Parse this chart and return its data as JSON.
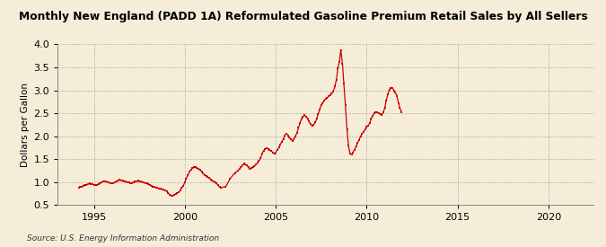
{
  "title": "Monthly New England (PADD 1A) Reformulated Gasoline Premium Retail Sales by All Sellers",
  "ylabel": "Dollars per Gallon",
  "source": "Source: U.S. Energy Information Administration",
  "background_color": "#f5edd8",
  "plot_bg_color": "#f5edd8",
  "dot_color": "#cc0000",
  "line_color": "#cc0000",
  "ylim": [
    0.5,
    4.0
  ],
  "yticks": [
    0.5,
    1.0,
    1.5,
    2.0,
    2.5,
    3.0,
    3.5,
    4.0
  ],
  "xlim_start": 1993.0,
  "xlim_end": 2022.5,
  "xticks": [
    1995,
    2000,
    2005,
    2010,
    2015,
    2020
  ],
  "data": [
    [
      1994.17,
      0.87
    ],
    [
      1994.25,
      0.89
    ],
    [
      1994.33,
      0.9
    ],
    [
      1994.42,
      0.92
    ],
    [
      1994.5,
      0.93
    ],
    [
      1994.58,
      0.94
    ],
    [
      1994.67,
      0.95
    ],
    [
      1994.75,
      0.97
    ],
    [
      1994.83,
      0.96
    ],
    [
      1994.92,
      0.95
    ],
    [
      1995.0,
      0.94
    ],
    [
      1995.08,
      0.93
    ],
    [
      1995.17,
      0.93
    ],
    [
      1995.25,
      0.95
    ],
    [
      1995.33,
      0.97
    ],
    [
      1995.42,
      0.99
    ],
    [
      1995.5,
      1.01
    ],
    [
      1995.58,
      1.02
    ],
    [
      1995.67,
      1.01
    ],
    [
      1995.75,
      1.0
    ],
    [
      1995.83,
      0.99
    ],
    [
      1995.92,
      0.98
    ],
    [
      1996.0,
      0.97
    ],
    [
      1996.08,
      0.98
    ],
    [
      1996.17,
      1.0
    ],
    [
      1996.25,
      1.02
    ],
    [
      1996.33,
      1.04
    ],
    [
      1996.42,
      1.05
    ],
    [
      1996.5,
      1.04
    ],
    [
      1996.58,
      1.03
    ],
    [
      1996.67,
      1.02
    ],
    [
      1996.75,
      1.01
    ],
    [
      1996.83,
      1.0
    ],
    [
      1996.92,
      0.99
    ],
    [
      1997.0,
      0.98
    ],
    [
      1997.08,
      0.98
    ],
    [
      1997.17,
      1.0
    ],
    [
      1997.25,
      1.01
    ],
    [
      1997.33,
      1.02
    ],
    [
      1997.42,
      1.03
    ],
    [
      1997.5,
      1.02
    ],
    [
      1997.58,
      1.01
    ],
    [
      1997.67,
      1.0
    ],
    [
      1997.75,
      0.99
    ],
    [
      1997.83,
      0.98
    ],
    [
      1997.92,
      0.97
    ],
    [
      1998.0,
      0.96
    ],
    [
      1998.08,
      0.94
    ],
    [
      1998.17,
      0.92
    ],
    [
      1998.25,
      0.9
    ],
    [
      1998.33,
      0.89
    ],
    [
      1998.42,
      0.88
    ],
    [
      1998.5,
      0.87
    ],
    [
      1998.58,
      0.86
    ],
    [
      1998.67,
      0.85
    ],
    [
      1998.75,
      0.84
    ],
    [
      1998.83,
      0.83
    ],
    [
      1998.92,
      0.82
    ],
    [
      1999.0,
      0.8
    ],
    [
      1999.08,
      0.76
    ],
    [
      1999.17,
      0.73
    ],
    [
      1999.25,
      0.71
    ],
    [
      1999.33,
      0.7
    ],
    [
      1999.42,
      0.72
    ],
    [
      1999.5,
      0.74
    ],
    [
      1999.58,
      0.76
    ],
    [
      1999.67,
      0.78
    ],
    [
      1999.75,
      0.82
    ],
    [
      1999.83,
      0.87
    ],
    [
      1999.92,
      0.92
    ],
    [
      2000.0,
      1.0
    ],
    [
      2000.08,
      1.08
    ],
    [
      2000.17,
      1.15
    ],
    [
      2000.25,
      1.22
    ],
    [
      2000.33,
      1.27
    ],
    [
      2000.42,
      1.3
    ],
    [
      2000.5,
      1.32
    ],
    [
      2000.58,
      1.33
    ],
    [
      2000.67,
      1.31
    ],
    [
      2000.75,
      1.29
    ],
    [
      2000.83,
      1.26
    ],
    [
      2000.92,
      1.23
    ],
    [
      2001.0,
      1.19
    ],
    [
      2001.08,
      1.16
    ],
    [
      2001.17,
      1.13
    ],
    [
      2001.25,
      1.11
    ],
    [
      2001.33,
      1.09
    ],
    [
      2001.42,
      1.06
    ],
    [
      2001.5,
      1.03
    ],
    [
      2001.58,
      1.01
    ],
    [
      2001.67,
      0.99
    ],
    [
      2001.75,
      0.97
    ],
    [
      2001.83,
      0.93
    ],
    [
      2001.92,
      0.89
    ],
    [
      2002.0,
      0.88
    ],
    [
      2002.25,
      0.9
    ],
    [
      2002.5,
      1.08
    ],
    [
      2002.75,
      1.2
    ],
    [
      2002.92,
      1.25
    ],
    [
      2003.0,
      1.28
    ],
    [
      2003.08,
      1.32
    ],
    [
      2003.17,
      1.36
    ],
    [
      2003.25,
      1.4
    ],
    [
      2003.33,
      1.38
    ],
    [
      2003.42,
      1.36
    ],
    [
      2003.5,
      1.32
    ],
    [
      2003.58,
      1.28
    ],
    [
      2003.67,
      1.3
    ],
    [
      2003.75,
      1.32
    ],
    [
      2003.83,
      1.35
    ],
    [
      2003.92,
      1.38
    ],
    [
      2004.0,
      1.42
    ],
    [
      2004.08,
      1.46
    ],
    [
      2004.17,
      1.52
    ],
    [
      2004.25,
      1.62
    ],
    [
      2004.33,
      1.68
    ],
    [
      2004.42,
      1.72
    ],
    [
      2004.5,
      1.74
    ],
    [
      2004.58,
      1.72
    ],
    [
      2004.67,
      1.7
    ],
    [
      2004.75,
      1.68
    ],
    [
      2004.83,
      1.65
    ],
    [
      2004.92,
      1.62
    ],
    [
      2005.0,
      1.65
    ],
    [
      2005.08,
      1.7
    ],
    [
      2005.17,
      1.75
    ],
    [
      2005.25,
      1.82
    ],
    [
      2005.33,
      1.88
    ],
    [
      2005.42,
      1.94
    ],
    [
      2005.5,
      2.02
    ],
    [
      2005.58,
      2.06
    ],
    [
      2005.67,
      2.02
    ],
    [
      2005.75,
      1.98
    ],
    [
      2005.83,
      1.93
    ],
    [
      2005.92,
      1.9
    ],
    [
      2006.0,
      1.94
    ],
    [
      2006.08,
      2.0
    ],
    [
      2006.17,
      2.08
    ],
    [
      2006.25,
      2.18
    ],
    [
      2006.33,
      2.28
    ],
    [
      2006.42,
      2.38
    ],
    [
      2006.5,
      2.42
    ],
    [
      2006.58,
      2.46
    ],
    [
      2006.67,
      2.43
    ],
    [
      2006.75,
      2.38
    ],
    [
      2006.83,
      2.32
    ],
    [
      2006.92,
      2.26
    ],
    [
      2007.0,
      2.22
    ],
    [
      2007.08,
      2.24
    ],
    [
      2007.17,
      2.3
    ],
    [
      2007.25,
      2.38
    ],
    [
      2007.33,
      2.48
    ],
    [
      2007.42,
      2.58
    ],
    [
      2007.5,
      2.68
    ],
    [
      2007.58,
      2.72
    ],
    [
      2007.67,
      2.78
    ],
    [
      2007.75,
      2.82
    ],
    [
      2007.83,
      2.84
    ],
    [
      2007.92,
      2.87
    ],
    [
      2008.0,
      2.9
    ],
    [
      2008.08,
      2.93
    ],
    [
      2008.17,
      2.98
    ],
    [
      2008.25,
      3.08
    ],
    [
      2008.33,
      3.22
    ],
    [
      2008.42,
      3.48
    ],
    [
      2008.5,
      3.62
    ],
    [
      2008.58,
      3.88
    ],
    [
      2008.67,
      3.58
    ],
    [
      2008.75,
      3.14
    ],
    [
      2008.83,
      2.68
    ],
    [
      2008.92,
      2.15
    ],
    [
      2009.0,
      1.8
    ],
    [
      2009.08,
      1.62
    ],
    [
      2009.17,
      1.6
    ],
    [
      2009.25,
      1.65
    ],
    [
      2009.33,
      1.7
    ],
    [
      2009.42,
      1.78
    ],
    [
      2009.5,
      1.85
    ],
    [
      2009.58,
      1.92
    ],
    [
      2009.67,
      2.0
    ],
    [
      2009.75,
      2.05
    ],
    [
      2009.83,
      2.1
    ],
    [
      2009.92,
      2.15
    ],
    [
      2010.0,
      2.2
    ],
    [
      2010.08,
      2.23
    ],
    [
      2010.17,
      2.28
    ],
    [
      2010.25,
      2.38
    ],
    [
      2010.33,
      2.44
    ],
    [
      2010.42,
      2.5
    ],
    [
      2010.5,
      2.52
    ],
    [
      2010.58,
      2.52
    ],
    [
      2010.67,
      2.5
    ],
    [
      2010.75,
      2.48
    ],
    [
      2010.83,
      2.46
    ],
    [
      2010.92,
      2.52
    ],
    [
      2011.0,
      2.62
    ],
    [
      2011.08,
      2.78
    ],
    [
      2011.17,
      2.92
    ],
    [
      2011.25,
      3.02
    ],
    [
      2011.33,
      3.06
    ],
    [
      2011.42,
      3.05
    ],
    [
      2011.5,
      3.0
    ],
    [
      2011.58,
      2.95
    ],
    [
      2011.67,
      2.88
    ],
    [
      2011.75,
      2.72
    ],
    [
      2011.83,
      2.62
    ],
    [
      2011.92,
      2.52
    ]
  ]
}
